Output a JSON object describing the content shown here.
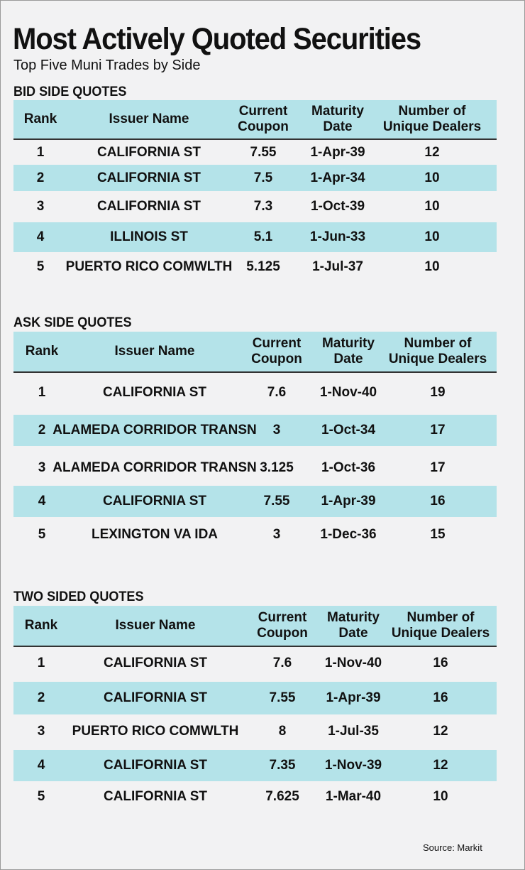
{
  "title": "Most Actively Quoted Securities",
  "subtitle": "Top Five Muni Trades by Side",
  "source": "Source: Markit",
  "columns": {
    "rank": "Rank",
    "issuer": "Issuer Name",
    "coupon_1": "Current",
    "coupon_2": "Coupon",
    "maturity_1": "Maturity",
    "maturity_2": "Date",
    "dealers_1": "Number of",
    "dealers_2": "Unique Dealers"
  },
  "sections": [
    {
      "title": "BID SIDE QUOTES",
      "rows": [
        {
          "rank": "1",
          "issuer": "CALIFORNIA ST",
          "coupon": "7.55",
          "maturity": "1-Apr-39",
          "dealers": "12"
        },
        {
          "rank": "2",
          "issuer": "CALIFORNIA ST",
          "coupon": "7.5",
          "maturity": "1-Apr-34",
          "dealers": "10"
        },
        {
          "rank": "3",
          "issuer": "CALIFORNIA ST",
          "coupon": "7.3",
          "maturity": "1-Oct-39",
          "dealers": "10"
        },
        {
          "rank": "4",
          "issuer": "ILLINOIS ST",
          "coupon": "5.1",
          "maturity": "1-Jun-33",
          "dealers": "10"
        },
        {
          "rank": "5",
          "issuer": "PUERTO RICO COMWLTH",
          "coupon": "5.125",
          "maturity": "1-Jul-37",
          "dealers": "10"
        }
      ]
    },
    {
      "title": "ASK SIDE QUOTES",
      "rows": [
        {
          "rank": "1",
          "issuer": "CALIFORNIA ST",
          "coupon": "7.6",
          "maturity": "1-Nov-40",
          "dealers": "19"
        },
        {
          "rank": "2",
          "issuer": "ALAMEDA CORRIDOR TRANSN",
          "coupon": "3",
          "maturity": "1-Oct-34",
          "dealers": "17"
        },
        {
          "rank": "3",
          "issuer": "ALAMEDA CORRIDOR TRANSN",
          "coupon": "3.125",
          "maturity": "1-Oct-36",
          "dealers": "17"
        },
        {
          "rank": "4",
          "issuer": "CALIFORNIA ST",
          "coupon": "7.55",
          "maturity": "1-Apr-39",
          "dealers": "16"
        },
        {
          "rank": "5",
          "issuer": "LEXINGTON VA IDA",
          "coupon": "3",
          "maturity": "1-Dec-36",
          "dealers": "15"
        }
      ]
    },
    {
      "title": "TWO SIDED QUOTES",
      "rows": [
        {
          "rank": "1",
          "issuer": "CALIFORNIA ST",
          "coupon": "7.6",
          "maturity": "1-Nov-40",
          "dealers": "16"
        },
        {
          "rank": "2",
          "issuer": "CALIFORNIA ST",
          "coupon": "7.55",
          "maturity": "1-Apr-39",
          "dealers": "16"
        },
        {
          "rank": "3",
          "issuer": "PUERTO RICO COMWLTH",
          "coupon": "8",
          "maturity": "1-Jul-35",
          "dealers": "12"
        },
        {
          "rank": "4",
          "issuer": "CALIFORNIA ST",
          "coupon": "7.35",
          "maturity": "1-Nov-39",
          "dealers": "12"
        },
        {
          "rank": "5",
          "issuer": "CALIFORNIA ST",
          "coupon": "7.625",
          "maturity": "1-Mar-40",
          "dealers": "10"
        }
      ]
    }
  ]
}
